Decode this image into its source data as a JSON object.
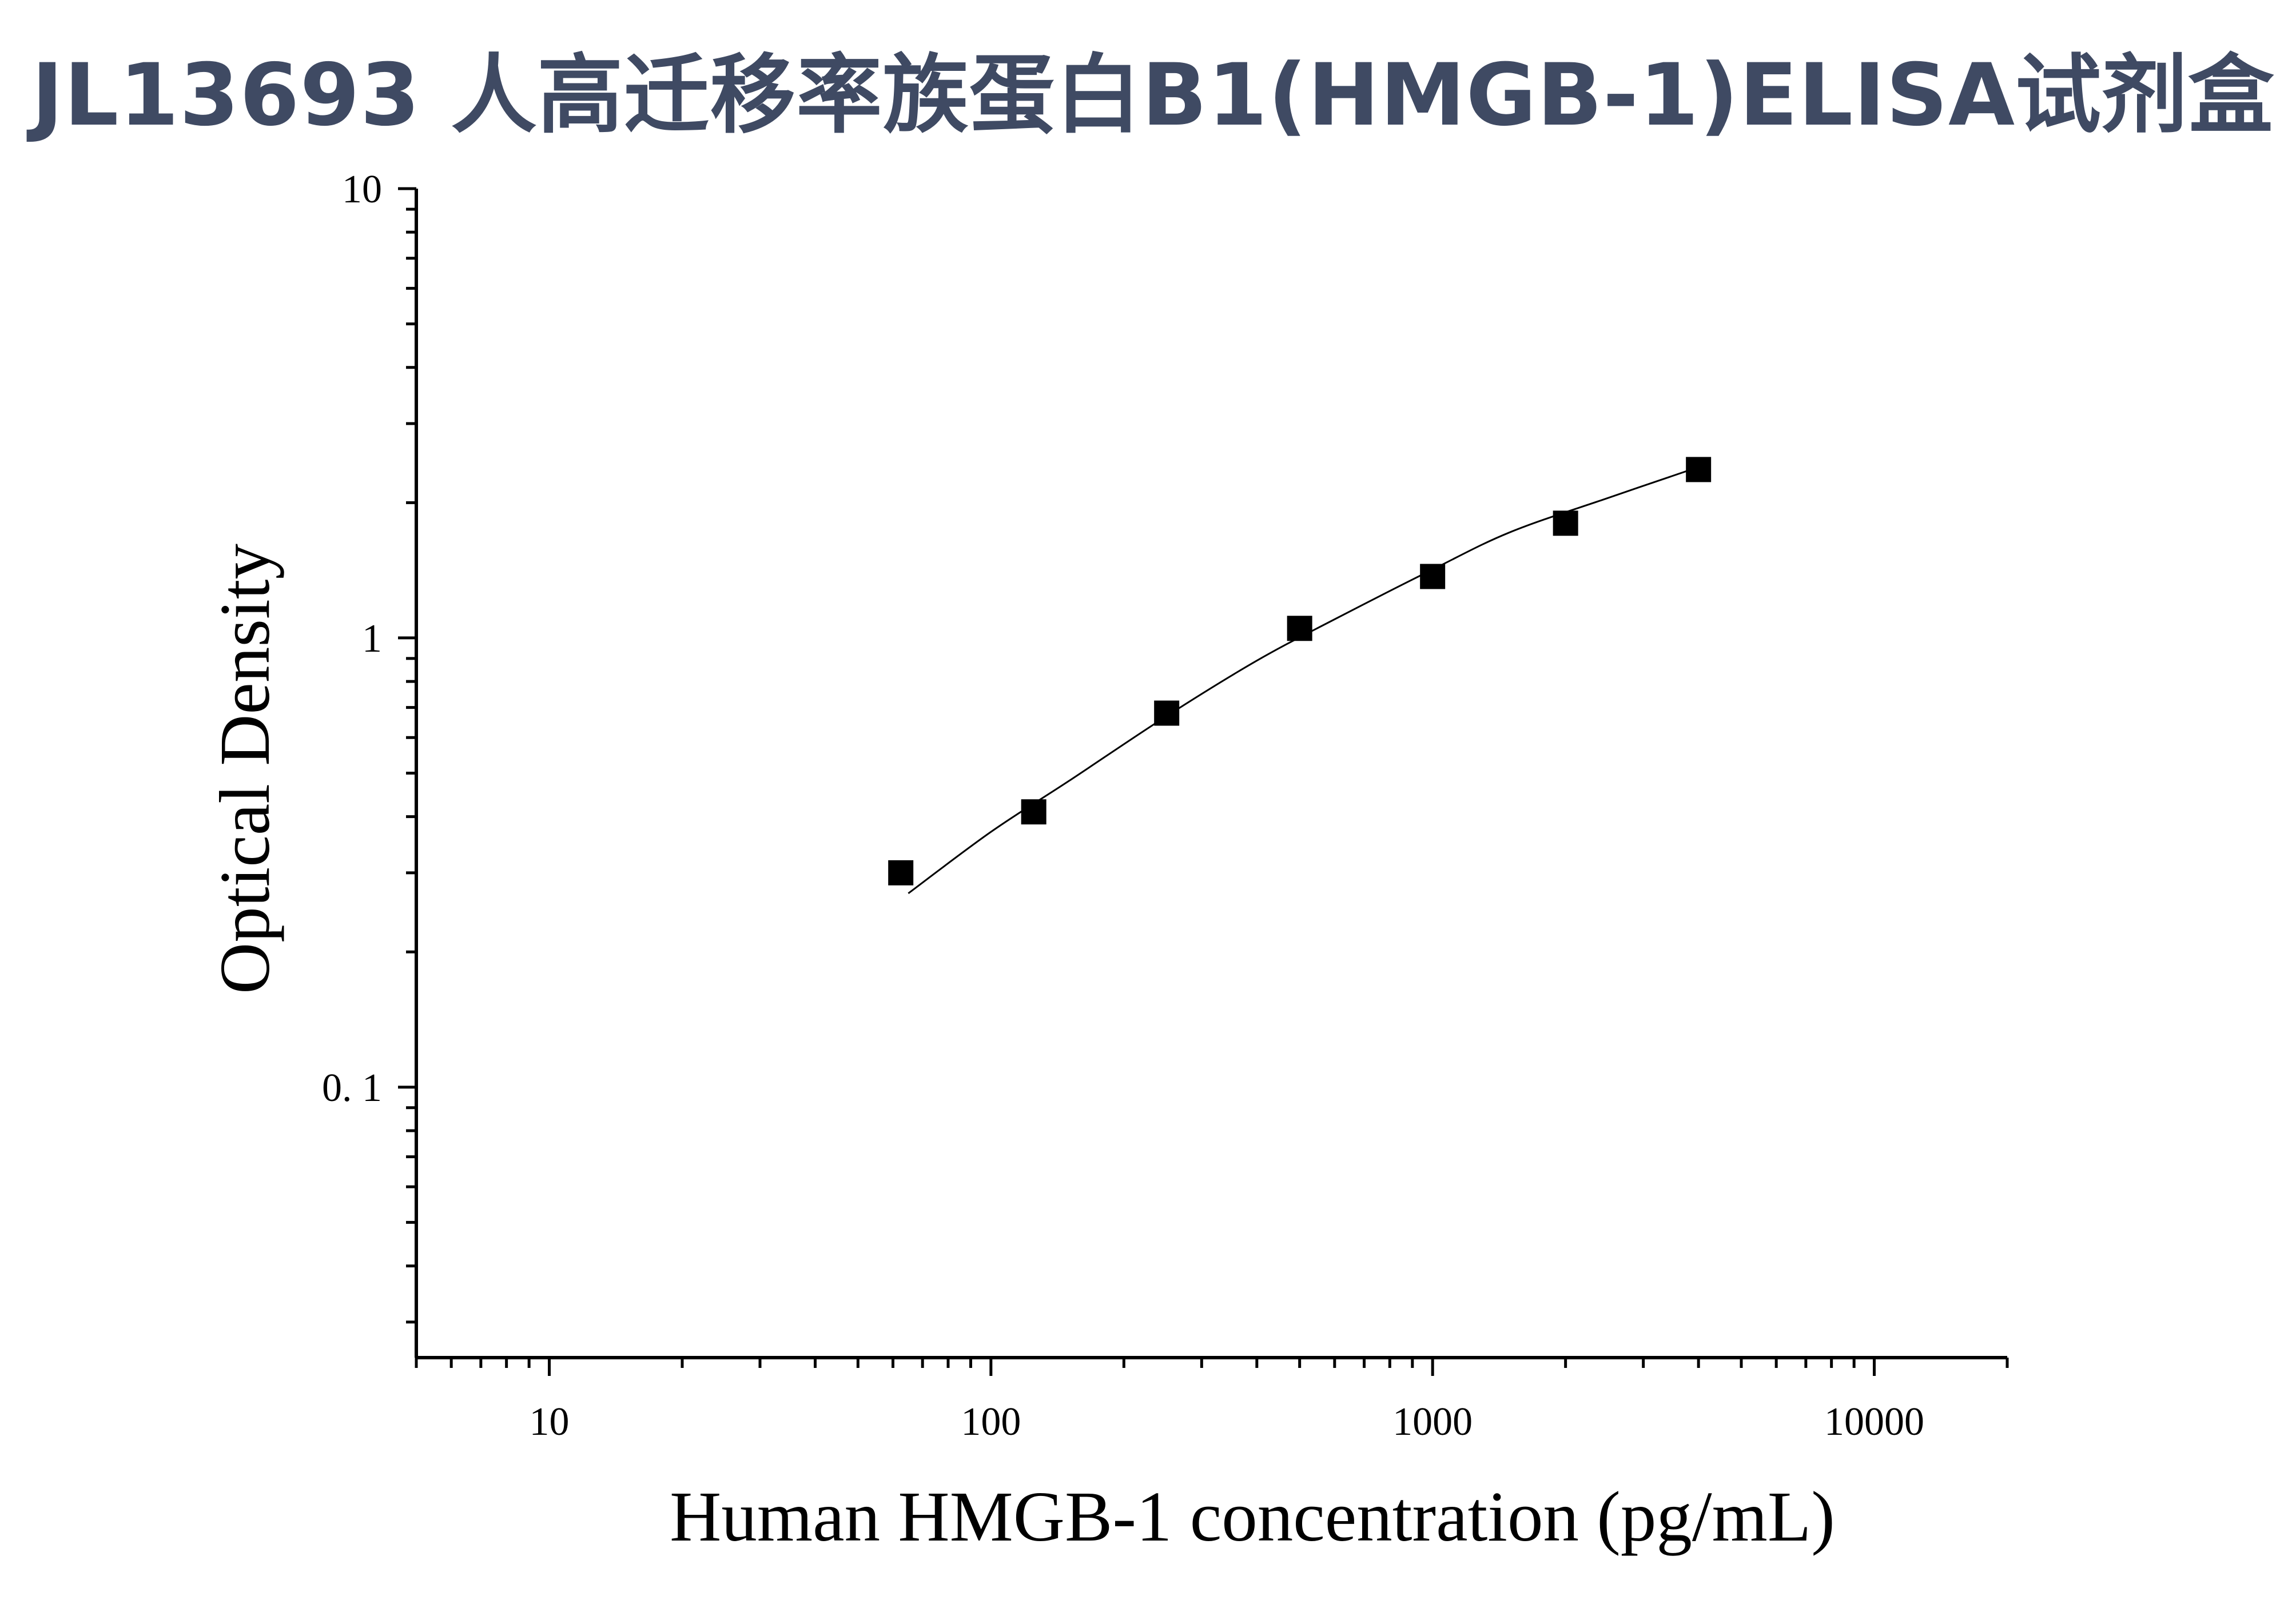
{
  "title": "JL13693 人高迁移率族蛋白B1(HMGB-1)ELISA试剂盒",
  "colors": {
    "title": "#3f4a63",
    "axis": "#000000",
    "marker": "#000000",
    "curve": "#000000"
  },
  "chart_data": {
    "type": "scatter",
    "title": "",
    "xlabel": "Human HMGB-1 concentration (pg/mL)",
    "ylabel": "Optical Density",
    "x_scale": "log",
    "y_scale": "log",
    "xlim": [
      5,
      20000
    ],
    "ylim": [
      0.025,
      10
    ],
    "x_ticks": [
      10,
      100,
      1000,
      10000
    ],
    "x_tick_labels": [
      "10",
      "100",
      "1000",
      "10000"
    ],
    "y_ticks": [
      0.1,
      1,
      10
    ],
    "y_tick_labels": [
      "0. 1",
      "1",
      "10"
    ],
    "grid": false,
    "legend": "none",
    "series": [
      {
        "marker": "square",
        "x": [
          62.5,
          125,
          250,
          500,
          1000,
          2000,
          4000
        ],
        "y": [
          0.3,
          0.41,
          0.68,
          1.05,
          1.37,
          1.8,
          2.37
        ]
      }
    ],
    "fit_curve": {
      "x": [
        65,
        100,
        150,
        250,
        400,
        600,
        1000,
        1500,
        2500,
        4000
      ],
      "y": [
        0.27,
        0.37,
        0.48,
        0.67,
        0.89,
        1.1,
        1.42,
        1.72,
        2.05,
        2.4
      ]
    }
  }
}
